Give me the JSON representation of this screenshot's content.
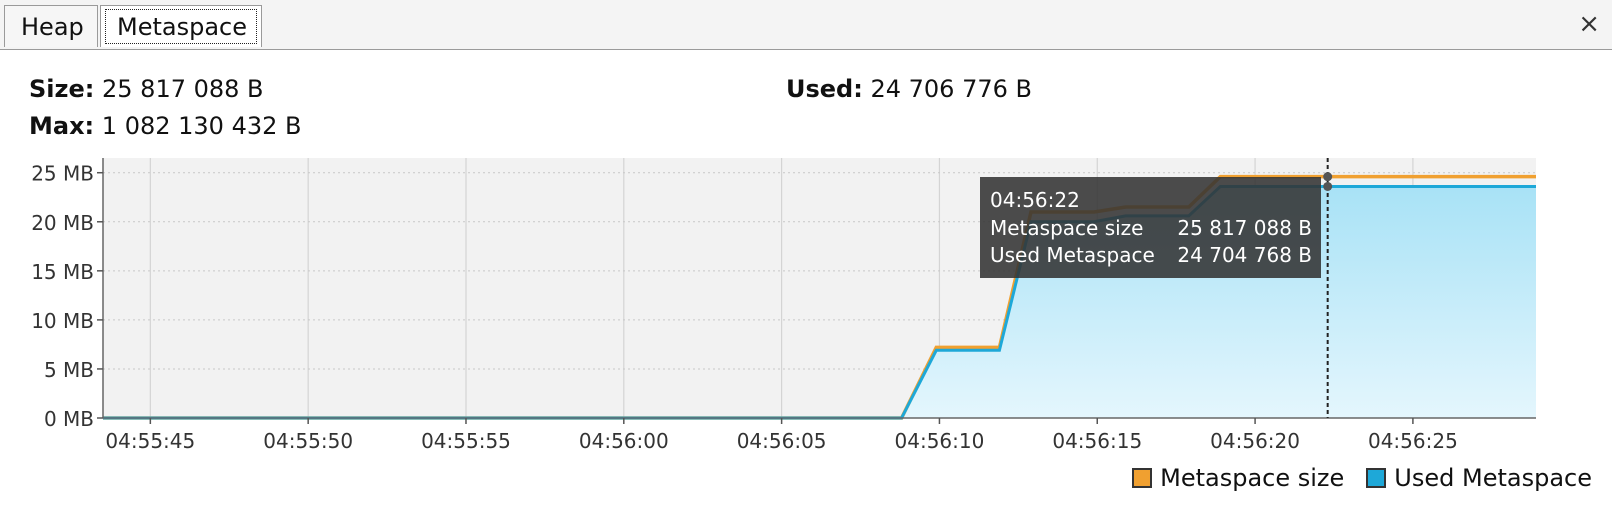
{
  "tabs": [
    {
      "label": "Heap",
      "active": false
    },
    {
      "label": "Metaspace",
      "active": true
    }
  ],
  "close_symbol": "×",
  "stats": {
    "size_label": "Size:",
    "size_value": "25 817 088 B",
    "used_label": "Used:",
    "used_value": "24 706 776 B",
    "max_label": "Max:",
    "max_value": "1 082 130 432 B"
  },
  "colors": {
    "metaspace_size": "#f0a030",
    "used_metaspace": "#1ea8d8",
    "used_fill_top": "#a8e2f6",
    "used_fill_bottom": "#e4f6fd",
    "plot_bg": "#f2f2f2",
    "tooltip_bg": "#333333"
  },
  "tooltip": {
    "time": "04:56:22",
    "rows": [
      {
        "label": "Metaspace size",
        "value": "25 817 088 B"
      },
      {
        "label": "Used Metaspace",
        "value": "24 704 768 B"
      }
    ]
  },
  "legend": [
    {
      "label": "Metaspace size",
      "color": "#f0a030"
    },
    {
      "label": "Used Metaspace",
      "color": "#1ea8d8"
    }
  ],
  "chart_data": {
    "type": "area",
    "xlabel": "",
    "ylabel": "",
    "x_range": [
      "04:55:43.5",
      "04:56:28.9"
    ],
    "ylim": [
      0,
      26.5
    ],
    "y_ticks": [
      0,
      5,
      10,
      15,
      20,
      25
    ],
    "y_tick_labels": [
      "0 MB",
      "5 MB",
      "10 MB",
      "15 MB",
      "20 MB",
      "25 MB"
    ],
    "x_ticks": [
      "04:55:45",
      "04:55:50",
      "04:55:55",
      "04:56:00",
      "04:56:05",
      "04:56:10",
      "04:56:15",
      "04:56:20",
      "04:56:25"
    ],
    "grid": true,
    "legend_position": "bottom-right",
    "cursor_time": "04:56:22.3",
    "series": [
      {
        "name": "Metaspace size",
        "x": [
          "04:55:43.5",
          "04:56:08.8",
          "04:56:09.9",
          "04:56:11.9",
          "04:56:12.9",
          "04:56:14.9",
          "04:56:15.9",
          "04:56:17.9",
          "04:56:18.9",
          "04:56:28.9"
        ],
        "values": [
          0,
          0,
          7.2,
          7.2,
          21.0,
          21.0,
          21.5,
          21.5,
          24.6,
          24.6
        ]
      },
      {
        "name": "Used Metaspace",
        "x": [
          "04:55:43.5",
          "04:56:08.8",
          "04:56:09.9",
          "04:56:11.9",
          "04:56:12.9",
          "04:56:14.9",
          "04:56:15.9",
          "04:56:17.9",
          "04:56:18.9",
          "04:56:28.9"
        ],
        "values": [
          0,
          0,
          6.9,
          6.9,
          20.0,
          20.0,
          20.6,
          20.6,
          23.6,
          23.6
        ]
      }
    ]
  }
}
